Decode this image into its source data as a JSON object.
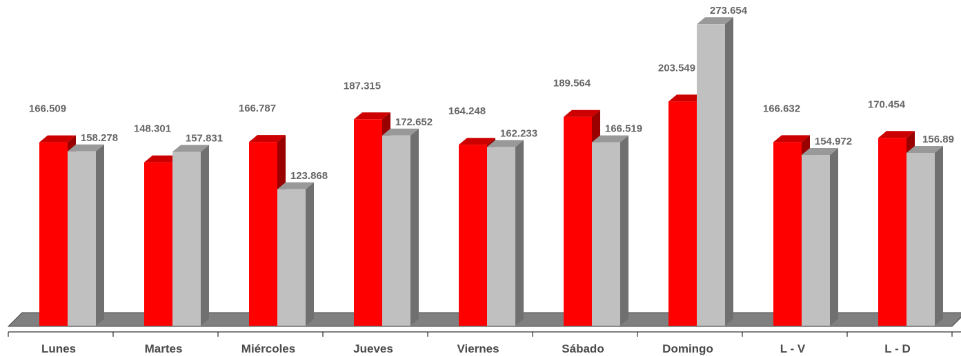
{
  "chart_data": {
    "type": "bar",
    "categories": [
      "Lunes",
      "Martes",
      "Miércoles",
      "Jueves",
      "Viernes",
      "Sábado",
      "Domingo",
      "L - V",
      "L - D"
    ],
    "series": [
      {
        "values": [
          166.509,
          148.301,
          166.787,
          187.315,
          164.248,
          189.564,
          203.549,
          166.632,
          170.454
        ],
        "labels": [
          "166.509",
          "148.301",
          "166.787",
          "187.315",
          "164.248",
          "189.564",
          "203.549",
          "166.632",
          "170.454"
        ],
        "color": "#ff0000"
      },
      {
        "values": [
          158.278,
          157.831,
          123.868,
          172.652,
          162.233,
          166.519,
          273.654,
          154.972,
          156.89
        ],
        "labels": [
          "158.278",
          "157.831",
          "123.868",
          "172.652",
          "162.233",
          "166.519",
          "273.654",
          "154.972",
          "156.89"
        ],
        "color": "#c0c0c0"
      }
    ],
    "ylim": [
      0,
      280
    ],
    "grid": false,
    "legend": "none",
    "style": "3d-columns"
  }
}
